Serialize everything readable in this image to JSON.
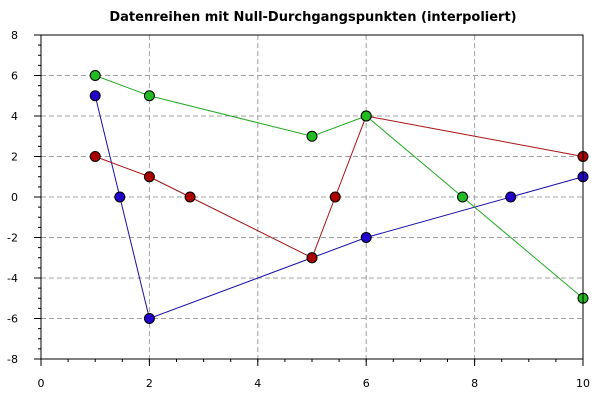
{
  "chart_data": {
    "type": "line",
    "title": "Datenreihen mit Null-Durchgangspunkten (interpoliert)",
    "xlabel": "",
    "ylabel": "",
    "xlim": [
      0,
      10
    ],
    "ylim": [
      -8,
      8
    ],
    "xticks": [
      0,
      2,
      4,
      6,
      8,
      10
    ],
    "yticks": [
      -8,
      -6,
      -4,
      -2,
      0,
      2,
      4,
      6,
      8
    ],
    "x_minor_step": 0.5,
    "y_minor_step": 0.5,
    "grid": true,
    "legend": "none",
    "series": [
      {
        "color": "#1a0fa8",
        "marker_color": "#2200cc",
        "points": [
          [
            1,
            5
          ],
          [
            1.4545,
            0
          ],
          [
            2,
            -6
          ],
          [
            5,
            -3
          ],
          [
            6,
            -2
          ],
          [
            8.6667,
            0
          ],
          [
            10,
            1
          ]
        ]
      },
      {
        "color": "#aa1111",
        "marker_color": "#aa0000",
        "points": [
          [
            1,
            2
          ],
          [
            2,
            1
          ],
          [
            2.75,
            0
          ],
          [
            5,
            -3
          ],
          [
            5.4286,
            0
          ],
          [
            6,
            4
          ],
          [
            10,
            2
          ]
        ]
      },
      {
        "color": "#22aa22",
        "marker_color": "#22bb22",
        "points": [
          [
            1,
            6
          ],
          [
            2,
            5
          ],
          [
            5,
            3
          ],
          [
            6,
            4
          ],
          [
            7.7778,
            0
          ],
          [
            10,
            -5
          ]
        ]
      }
    ]
  }
}
